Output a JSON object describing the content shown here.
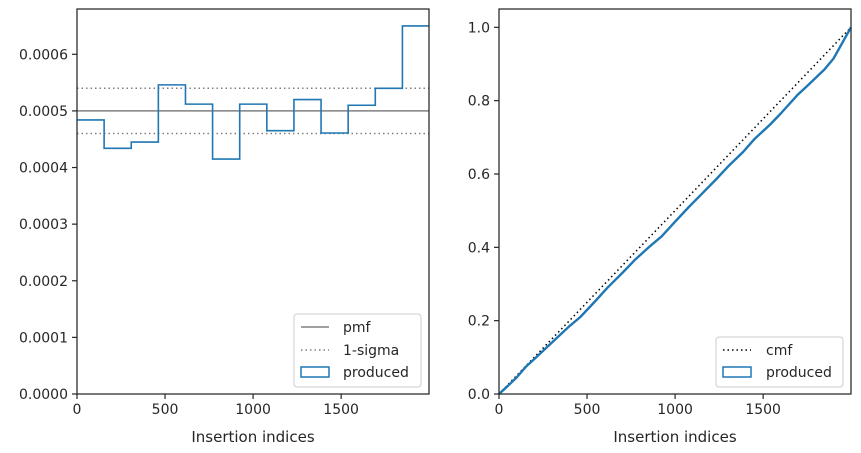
{
  "chart_data": [
    {
      "type": "step-histogram",
      "xlabel": "Insertion indices",
      "ylabel": "",
      "xlim": [
        0,
        1999
      ],
      "ylim": [
        0,
        0.00068
      ],
      "xticks": [
        0,
        500,
        1000,
        1500
      ],
      "yticks": [
        "0.0000",
        "0.0001",
        "0.0002",
        "0.0003",
        "0.0004",
        "0.0005",
        "0.0006"
      ],
      "bin_edges": [
        0,
        154,
        308,
        462,
        616,
        770,
        924,
        1078,
        1232,
        1386,
        1540,
        1694,
        1848,
        1999
      ],
      "series": [
        {
          "name": "produced",
          "style": "step",
          "color": "#1f77b4",
          "values": [
            0.000484,
            0.000434,
            0.000445,
            0.000546,
            0.000512,
            0.000415,
            0.000512,
            0.000465,
            0.00052,
            0.000461,
            0.00051,
            0.00054,
            0.00065
          ]
        }
      ],
      "reference_lines": [
        {
          "name": "pmf",
          "value": 0.0005,
          "style": "solid",
          "color": "#808080"
        },
        {
          "name": "1-sigma",
          "values": [
            0.00046,
            0.00054
          ],
          "style": "dotted",
          "color": "#808080"
        }
      ],
      "legend": {
        "placement": "lower-right",
        "entries": [
          "pmf",
          "1-sigma",
          "produced"
        ]
      },
      "grid": false
    },
    {
      "type": "line",
      "xlabel": "Insertion indices",
      "ylabel": "",
      "xlim": [
        0,
        1999
      ],
      "ylim": [
        0,
        1.05
      ],
      "xticks": [
        0,
        500,
        1000,
        1500
      ],
      "yticks": [
        "0.0",
        "0.2",
        "0.4",
        "0.6",
        "0.8",
        "1.0"
      ],
      "series": [
        {
          "name": "cmf",
          "style": "dotted",
          "color": "#000000",
          "x": [
            0,
            1999
          ],
          "y": [
            0,
            1.0
          ]
        },
        {
          "name": "produced",
          "style": "solid",
          "color": "#1f77b4",
          "x": [
            0,
            50,
            100,
            154,
            200,
            300,
            400,
            462,
            550,
            616,
            700,
            770,
            850,
            924,
            1000,
            1078,
            1150,
            1232,
            1300,
            1386,
            1450,
            1540,
            1600,
            1694,
            1750,
            1848,
            1900,
            1999
          ],
          "y": [
            0,
            0.022,
            0.045,
            0.075,
            0.095,
            0.14,
            0.185,
            0.21,
            0.255,
            0.29,
            0.33,
            0.365,
            0.4,
            0.43,
            0.47,
            0.51,
            0.545,
            0.585,
            0.62,
            0.66,
            0.695,
            0.735,
            0.765,
            0.815,
            0.84,
            0.885,
            0.915,
            1.0
          ]
        }
      ],
      "legend": {
        "placement": "lower-right",
        "entries": [
          "cmf",
          "produced"
        ]
      },
      "grid": false
    }
  ]
}
